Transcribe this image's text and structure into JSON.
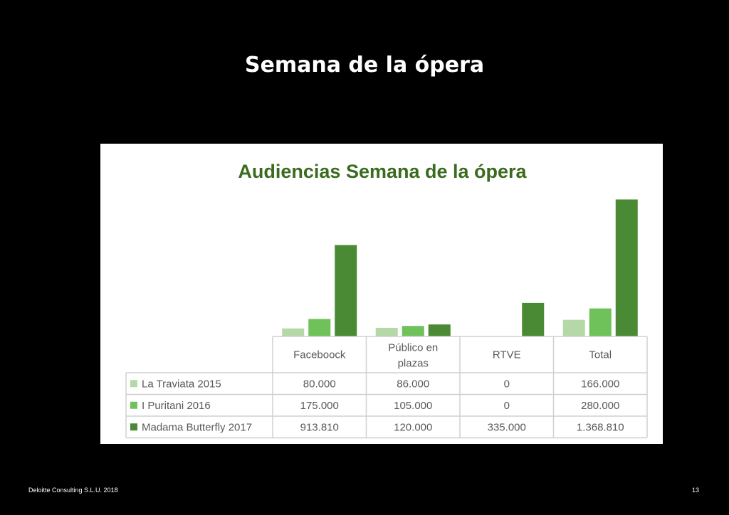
{
  "slide": {
    "title": "Semana de la ópera",
    "footer_left": "Deloitte Consulting S.L.U. 2018",
    "page_number": "13"
  },
  "colors": {
    "background": "#000000",
    "chart_title": "#3a6b1f",
    "series": [
      "#b5d8a7",
      "#6fc15a",
      "#4a8a34"
    ]
  },
  "chart_data": {
    "type": "bar",
    "title": "Audiencias Semana de la ópera",
    "categories": [
      "Faceboock",
      "Público en plazas",
      "RTVE",
      "Total"
    ],
    "series": [
      {
        "name": "La Traviata 2015",
        "values": [
          80000,
          86000,
          0,
          166000
        ],
        "labels": [
          "80.000",
          "86.000",
          "0",
          "166.000"
        ]
      },
      {
        "name": "I Puritani 2016",
        "values": [
          175000,
          105000,
          0,
          280000
        ],
        "labels": [
          "175.000",
          "105.000",
          "0",
          "280.000"
        ]
      },
      {
        "name": "Madama Butterfly 2017",
        "values": [
          913810,
          120000,
          335000,
          1368810
        ],
        "labels": [
          "913.810",
          "120.000",
          "335.000",
          "1.368.810"
        ]
      }
    ],
    "ylim": [
      0,
      1500000
    ],
    "grid": false,
    "legend": "data-table"
  }
}
